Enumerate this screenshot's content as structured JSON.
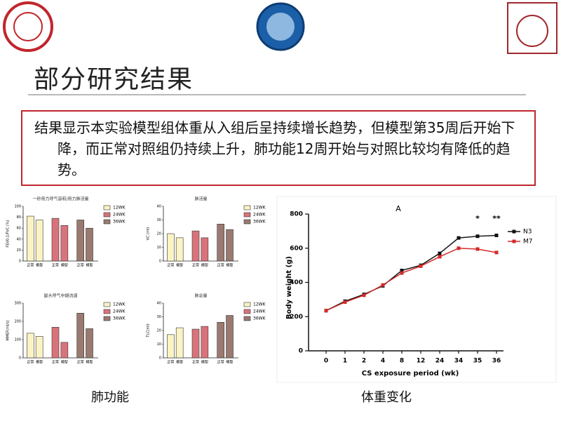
{
  "slide": {
    "title": "部分研究结果",
    "summary": "结果显示本实验模型组体重从入组后呈持续增长趋势，但模型第35周后开始下降，而正常对照组仍持续上升，肺功能12周开始与对照比较均有降低的趋势。",
    "captions": [
      "肺功能",
      "体重变化"
    ]
  },
  "chart_data": [
    {
      "type": "bar",
      "title": "一秒用力呼气容积/用力肺活量",
      "y_label": "FEV0.1/FVC (%)",
      "categories": [
        "正常",
        "模型"
      ],
      "series": [
        {
          "name": "12WK",
          "color": "#fbf3c4",
          "values": [
            82,
            75
          ]
        },
        {
          "name": "24WK",
          "color": "#d9737b",
          "values": [
            78,
            65
          ]
        },
        {
          "name": "36WK",
          "color": "#9a7a70",
          "values": [
            75,
            60
          ]
        }
      ],
      "ylim": [
        0,
        100
      ],
      "yticks": [
        0,
        20,
        40,
        60,
        80,
        100
      ]
    },
    {
      "type": "bar",
      "title": "肺活量",
      "y_label": "VC (ml)",
      "categories": [
        "正常",
        "模型"
      ],
      "series": [
        {
          "name": "12WK",
          "color": "#fbf3c4",
          "values": [
            20,
            17
          ]
        },
        {
          "name": "24WK",
          "color": "#d9737b",
          "values": [
            22,
            17
          ]
        },
        {
          "name": "36WK",
          "color": "#9a7a70",
          "values": [
            27,
            23
          ]
        }
      ],
      "ylim": [
        0,
        40
      ],
      "yticks": [
        0,
        10,
        20,
        30,
        40
      ]
    },
    {
      "type": "bar",
      "title": "最大呼气中期流速",
      "y_label": "MMEF(ml/s)",
      "categories": [
        "正常",
        "模型"
      ],
      "series": [
        {
          "name": "12WK",
          "color": "#fbf3c4",
          "values": [
            135,
            118
          ]
        },
        {
          "name": "24WK",
          "color": "#d9737b",
          "values": [
            168,
            85
          ]
        },
        {
          "name": "36WK",
          "color": "#9a7a70",
          "values": [
            245,
            160
          ]
        }
      ],
      "ylim": [
        0,
        300
      ],
      "yticks": [
        0,
        100,
        200,
        300
      ]
    },
    {
      "type": "bar",
      "title": "肺总量",
      "y_label": "TLC(ml)",
      "categories": [
        "正常",
        "模型"
      ],
      "series": [
        {
          "name": "12WK",
          "color": "#fbf3c4",
          "values": [
            17,
            22
          ]
        },
        {
          "name": "24WK",
          "color": "#d9737b",
          "values": [
            21,
            23
          ]
        },
        {
          "name": "36WK",
          "color": "#9a7a70",
          "values": [
            26,
            31
          ]
        }
      ],
      "ylim": [
        0,
        40
      ],
      "yticks": [
        0,
        10,
        20,
        30,
        40
      ]
    },
    {
      "type": "line",
      "title": "A",
      "x_label": "CS   exposure period (wk)",
      "y_label": "Body    weight (g)",
      "categories": [
        "0",
        "1",
        "2",
        "4",
        "8",
        "12",
        "24",
        "34",
        "35",
        "36"
      ],
      "series": [
        {
          "name": "N3",
          "color": "#111111",
          "values": [
            235,
            290,
            330,
            380,
            470,
            500,
            570,
            660,
            670,
            675
          ]
        },
        {
          "name": "M7",
          "color": "#d32a2a",
          "values": [
            235,
            285,
            325,
            385,
            455,
            495,
            550,
            600,
            595,
            575
          ]
        }
      ],
      "annotations": [
        {
          "text": "*",
          "category": 8
        },
        {
          "text": "**",
          "category": 9
        }
      ],
      "ylim": [
        0,
        800
      ],
      "yticks": [
        0,
        200,
        400,
        600,
        800
      ],
      "legend": "upper right"
    }
  ]
}
